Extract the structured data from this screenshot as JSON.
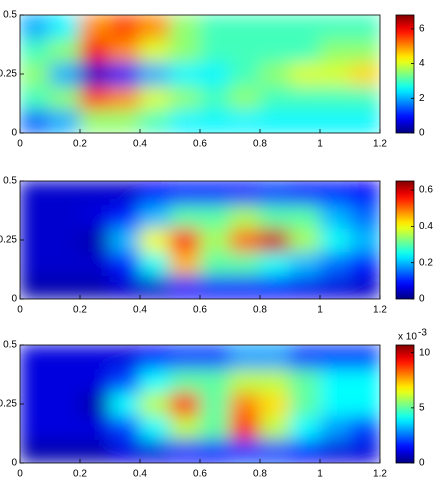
{
  "chart_data": [
    {
      "type": "heatmap",
      "colormap": "jet",
      "x": [
        0.05,
        0.15,
        0.25,
        0.35,
        0.45,
        0.55,
        0.65,
        0.75,
        0.85,
        0.95,
        1.05,
        1.15
      ],
      "y": [
        0.05,
        0.15,
        0.25,
        0.35,
        0.45
      ],
      "z": [
        [
          1.5,
          2,
          3.5,
          3.5,
          3,
          2.5,
          2.5,
          2.5,
          2.5,
          2.5,
          2.5,
          2.5
        ],
        [
          3,
          3.5,
          5.5,
          5,
          4,
          3.5,
          3,
          3.5,
          3,
          3,
          3,
          3
        ],
        [
          3.5,
          2,
          0.5,
          1,
          2,
          2.5,
          2.5,
          3,
          3.5,
          4,
          4,
          4.5
        ],
        [
          3,
          3.5,
          6,
          5,
          4,
          3.5,
          3,
          3,
          3,
          3,
          3.5,
          3.5
        ],
        [
          2,
          2.5,
          5,
          5.5,
          5,
          3.5,
          3,
          3,
          3,
          3,
          3,
          3
        ]
      ],
      "xlim": [
        0,
        1.2
      ],
      "ylim": [
        0,
        0.5
      ],
      "xticks": [
        0,
        0.2,
        0.4,
        0.6,
        0.8,
        1,
        1.2
      ],
      "yticks": [
        0,
        0.25,
        0.5
      ],
      "clim": [
        0,
        6.8
      ],
      "cticks": [
        0,
        2,
        4,
        6
      ]
    },
    {
      "type": "heatmap",
      "colormap": "jet",
      "x": [
        0.05,
        0.15,
        0.25,
        0.35,
        0.45,
        0.55,
        0.65,
        0.75,
        0.85,
        0.95,
        1.05,
        1.15
      ],
      "y": [
        0.05,
        0.15,
        0.25,
        0.35,
        0.45
      ],
      "z": [
        [
          0.03,
          0.03,
          0.03,
          0.05,
          0.05,
          0.08,
          0.08,
          0.08,
          0.08,
          0.07,
          0.06,
          0.05
        ],
        [
          0.05,
          0.05,
          0.05,
          0.1,
          0.25,
          0.45,
          0.3,
          0.3,
          0.25,
          0.2,
          0.15,
          0.1
        ],
        [
          0.05,
          0.05,
          0.03,
          0.2,
          0.4,
          0.55,
          0.35,
          0.5,
          0.6,
          0.35,
          0.25,
          0.2
        ],
        [
          0.05,
          0.05,
          0.06,
          0.1,
          0.2,
          0.3,
          0.3,
          0.35,
          0.3,
          0.3,
          0.2,
          0.15
        ],
        [
          0.05,
          0.05,
          0.05,
          0.05,
          0.08,
          0.1,
          0.1,
          0.1,
          0.12,
          0.1,
          0.1,
          0.08
        ]
      ],
      "xlim": [
        0,
        1.2
      ],
      "ylim": [
        0,
        0.5
      ],
      "xticks": [
        0,
        0.2,
        0.4,
        0.6,
        0.8,
        1,
        1.2
      ],
      "yticks": [
        0,
        0.25,
        0.5
      ],
      "clim": [
        0,
        0.65
      ],
      "cticks": [
        0,
        0.2,
        0.4,
        0.6
      ]
    },
    {
      "type": "heatmap",
      "colormap": "jet",
      "x": [
        0.05,
        0.15,
        0.25,
        0.35,
        0.45,
        0.55,
        0.65,
        0.75,
        0.85,
        0.95,
        1.05,
        1.15
      ],
      "y": [
        0.05,
        0.15,
        0.25,
        0.35,
        0.45
      ],
      "z": [
        [
          0.0005,
          0.0005,
          0.0005,
          0.001,
          0.001,
          0.0015,
          0.0015,
          0.002,
          0.002,
          0.0015,
          0.001,
          0.001
        ],
        [
          0.001,
          0.001,
          0.001,
          0.002,
          0.004,
          0.006,
          0.005,
          0.009,
          0.006,
          0.004,
          0.003,
          0.002
        ],
        [
          0.001,
          0.001,
          0.0005,
          0.004,
          0.006,
          0.009,
          0.005,
          0.008,
          0.007,
          0.005,
          0.004,
          0.004
        ],
        [
          0.001,
          0.001,
          0.001,
          0.002,
          0.004,
          0.005,
          0.005,
          0.006,
          0.006,
          0.005,
          0.004,
          0.004
        ],
        [
          0.001,
          0.001,
          0.001,
          0.001,
          0.0015,
          0.002,
          0.002,
          0.003,
          0.003,
          0.002,
          0.002,
          0.002
        ]
      ],
      "xlim": [
        0,
        1.2
      ],
      "ylim": [
        0,
        0.5
      ],
      "xticks": [
        0,
        0.2,
        0.4,
        0.6,
        0.8,
        1,
        1.2
      ],
      "yticks": [
        0,
        0.25,
        0.5
      ],
      "clim": [
        0,
        0.0107
      ],
      "cticks": [
        0,
        {
          "value": 0.005,
          "label": "5"
        },
        {
          "value": 0.01,
          "label": "10"
        }
      ],
      "colorbar_multiplier": {
        "base": "x 10",
        "exponent": "-3"
      }
    }
  ]
}
